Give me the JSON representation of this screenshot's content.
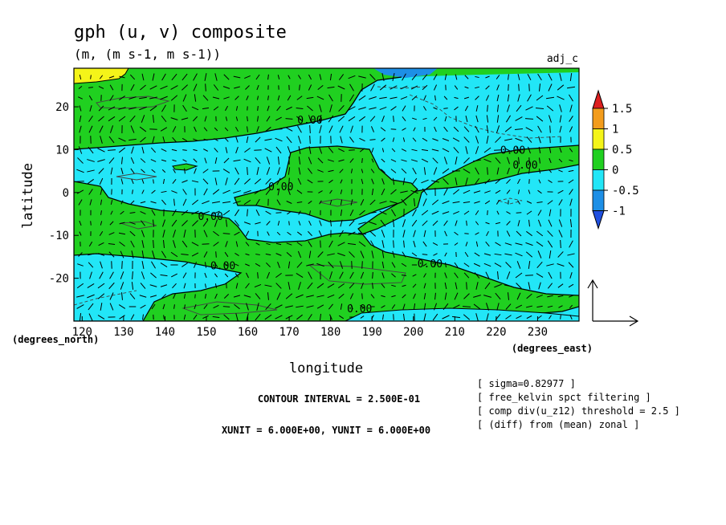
{
  "title": "gph (u, v) composite",
  "subtitle": "(m, (m s-1, m s-1))",
  "tag": "adj_c",
  "chart_data": {
    "type": "contour",
    "x": {
      "label": "longitude",
      "unit": "(degrees_east)",
      "range": [
        118,
        240
      ],
      "ticks": [
        120,
        130,
        140,
        150,
        160,
        170,
        180,
        190,
        200,
        210,
        220,
        230
      ]
    },
    "y": {
      "label": "latitude",
      "unit": "(degrees_north)",
      "range": [
        -30,
        29
      ],
      "ticks": [
        20,
        10,
        0,
        -10,
        -20
      ]
    },
    "colorbar": {
      "labels": [
        "1.5",
        "1",
        "0.5",
        "0",
        "-0.5",
        "-1"
      ],
      "colors": [
        "#dd1f1f",
        "#f39c1c",
        "#f4f419",
        "#20d020",
        "#22e6f7",
        "#1d8fe6",
        "#2050e0"
      ]
    },
    "contour_labels": [
      {
        "text": "0.00",
        "x": 175,
        "y": 17
      },
      {
        "text": "0.00",
        "x": 224,
        "y": 10
      },
      {
        "text": "0.00",
        "x": 227,
        "y": 6.5
      },
      {
        "text": "0.00",
        "x": 168,
        "y": 1.5
      },
      {
        "text": "0.00",
        "x": 151,
        "y": -5.5
      },
      {
        "text": "0.00",
        "x": 154,
        "y": -17
      },
      {
        "text": "0.00",
        "x": 204,
        "y": -16.5
      },
      {
        "text": "0.00",
        "x": 187,
        "y": -27
      }
    ]
  },
  "footer": {
    "contour_interval": "CONTOUR INTERVAL = 2.500E-01",
    "units": "XUNIT = 6.000E+00, YUNIT = 6.000E+00",
    "notes": [
      "[ sigma=0.82977 ]",
      "[ free_kelvin spct filtering ]",
      "[ comp div(u_z12) threshold = 2.5 ]",
      "[ (diff) from (mean) zonal ]"
    ]
  },
  "colors": {
    "cyan": "#22e6f7",
    "green": "#20d020",
    "yellow": "#f4f419",
    "blue": "#1d8fe6"
  }
}
